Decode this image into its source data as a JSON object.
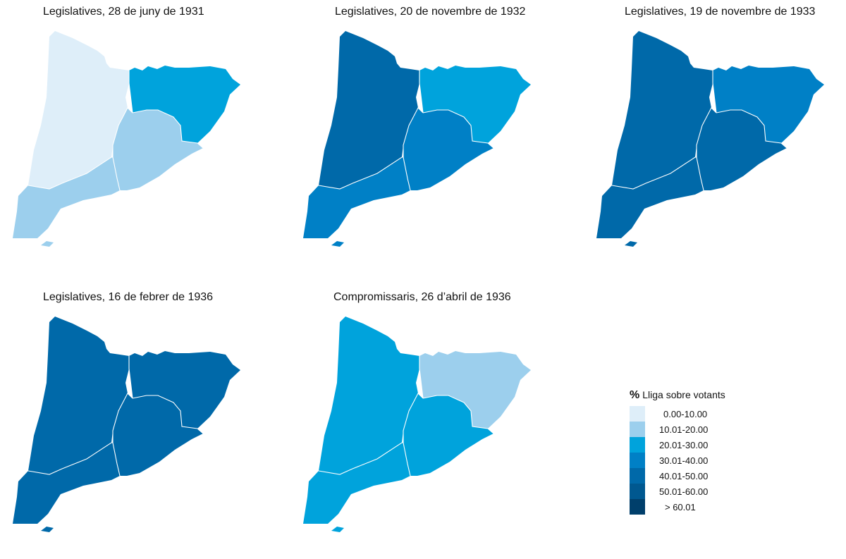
{
  "panels": [
    {
      "title": "Legislatives, 28 de juny de 1931",
      "colors": {
        "lleida": "#deeef9",
        "girona": "#00a3dc",
        "barcelona": "#9ccfed",
        "tarragona": "#9ccfed"
      }
    },
    {
      "title": "Legislatives, 20 de novembre de 1932",
      "colors": {
        "lleida": "#0069a9",
        "girona": "#00a3dc",
        "barcelona": "#0080c6",
        "tarragona": "#0080c6"
      }
    },
    {
      "title": "Legislatives, 19 de novembre de 1933",
      "colors": {
        "lleida": "#0069a9",
        "girona": "#0080c6",
        "barcelona": "#0069a9",
        "tarragona": "#0069a9"
      }
    },
    {
      "title": "Legislatives, 16 de febrer de 1936",
      "colors": {
        "lleida": "#0069a9",
        "girona": "#0069a9",
        "barcelona": "#0069a9",
        "tarragona": "#0069a9"
      }
    },
    {
      "title": "Compromissaris, 26 d’abril de 1936",
      "colors": {
        "lleida": "#00a3dc",
        "girona": "#9ccfed",
        "barcelona": "#00a3dc",
        "tarragona": "#00a3dc"
      }
    }
  ],
  "legend": {
    "symbol": "%",
    "title": "Lliga sobre votants",
    "items": [
      {
        "label": "0.00-10.00",
        "color": "#deeef9"
      },
      {
        "label": "10.01-20.00",
        "color": "#9ccfed"
      },
      {
        "label": "20.01-30.00",
        "color": "#00a3dc"
      },
      {
        "label": "30.01-40.00",
        "color": "#0080c6"
      },
      {
        "label": "40.01-50.00",
        "color": "#0069a9"
      },
      {
        "label": "50.01-60.00",
        "color": "#005890"
      },
      {
        "label": "> 60.01",
        "color": "#003f6b"
      }
    ]
  }
}
